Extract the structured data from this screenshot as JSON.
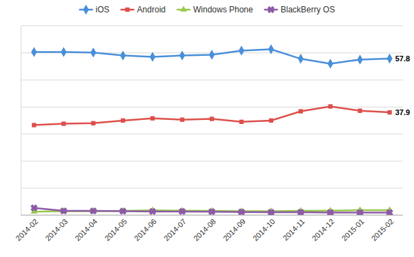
{
  "chart_data": {
    "type": "line",
    "categories": [
      "2014-02",
      "2014-03",
      "2014-04",
      "2014-05",
      "2014-06",
      "2014-07",
      "2014-08",
      "2014-09",
      "2014-10",
      "2014-11",
      "2014-12",
      "2015-01",
      "2015-02"
    ],
    "series": [
      {
        "name": "iOS",
        "color": "#4a8fd9",
        "marker": "diamond",
        "values": [
          60.2,
          60.2,
          60.0,
          58.9,
          58.4,
          58.9,
          59.2,
          60.7,
          61.2,
          57.7,
          55.9,
          57.4,
          57.8
        ],
        "value_labels": [
          null,
          null,
          null,
          null,
          null,
          null,
          null,
          null,
          null,
          null,
          null,
          null,
          "57.8"
        ]
      },
      {
        "name": "Android",
        "color": "#dd4f4a",
        "marker": "square",
        "values": [
          33.2,
          33.7,
          33.9,
          34.9,
          35.7,
          35.2,
          35.5,
          34.4,
          34.9,
          38.3,
          40.1,
          38.5,
          37.9
        ],
        "value_labels": [
          null,
          null,
          null,
          null,
          null,
          null,
          null,
          null,
          null,
          null,
          null,
          null,
          "37.9"
        ]
      },
      {
        "name": "Windows Phone",
        "color": "#98c94a",
        "marker": "triangle",
        "values": [
          1.2,
          1.4,
          1.4,
          1.5,
          1.7,
          1.6,
          1.5,
          1.4,
          1.4,
          1.5,
          1.6,
          1.8,
          1.8
        ]
      },
      {
        "name": "BlackBerry OS",
        "color": "#8d5ba6",
        "marker": "x",
        "values": [
          2.6,
          1.5,
          1.5,
          1.4,
          1.3,
          1.3,
          1.2,
          1.1,
          1.0,
          1.0,
          0.9,
          0.9,
          0.9
        ]
      }
    ],
    "ylim": [
      0,
      70
    ],
    "yticks": [
      0,
      10,
      20,
      30,
      40,
      50,
      60,
      70
    ],
    "grid": true,
    "legend": "top",
    "tick_labels": "x"
  }
}
